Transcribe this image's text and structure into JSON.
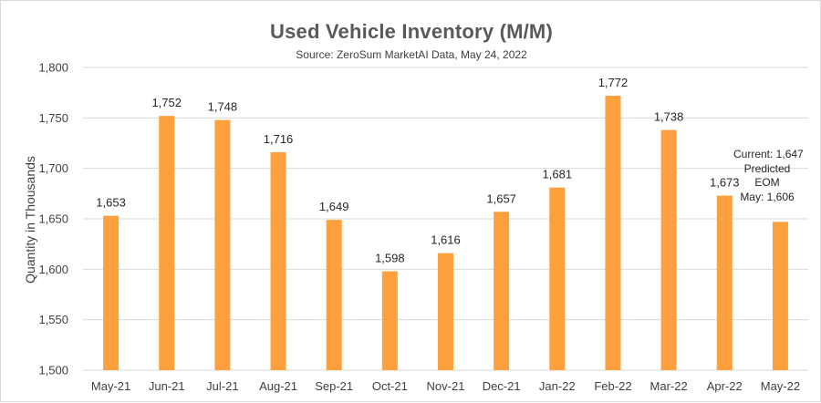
{
  "chart_data": {
    "type": "bar",
    "title": "Used Vehicle Inventory (M/M)",
    "subtitle": "Source: ZeroSum MarketAI Data, May 24, 2022",
    "ylabel": "Quantity in Thousands",
    "xlabel": "",
    "categories": [
      "May-21",
      "Jun-21",
      "Jul-21",
      "Aug-21",
      "Sep-21",
      "Oct-21",
      "Nov-21",
      "Dec-21",
      "Jan-22",
      "Feb-22",
      "Mar-22",
      "Apr-22",
      "May-22"
    ],
    "values": [
      1653,
      1752,
      1748,
      1716,
      1649,
      1598,
      1616,
      1657,
      1681,
      1772,
      1738,
      1673,
      1647
    ],
    "data_labels": [
      "1,653",
      "1,752",
      "1,748",
      "1,716",
      "1,649",
      "1,598",
      "1,616",
      "1,657",
      "1,681",
      "1,772",
      "1,738",
      "1,673",
      ""
    ],
    "ylim": [
      1500,
      1800
    ],
    "yticks": [
      1500,
      1550,
      1600,
      1650,
      1700,
      1750,
      1800
    ],
    "ytick_labels": [
      "1,500",
      "1,550",
      "1,600",
      "1,650",
      "1,700",
      "1,750",
      "1,800"
    ],
    "grid": true,
    "bar_color": "#FFA03F",
    "annotation_lines": [
      "Current: 1,647",
      "Predicted",
      "EOM",
      "May: 1,606"
    ]
  }
}
